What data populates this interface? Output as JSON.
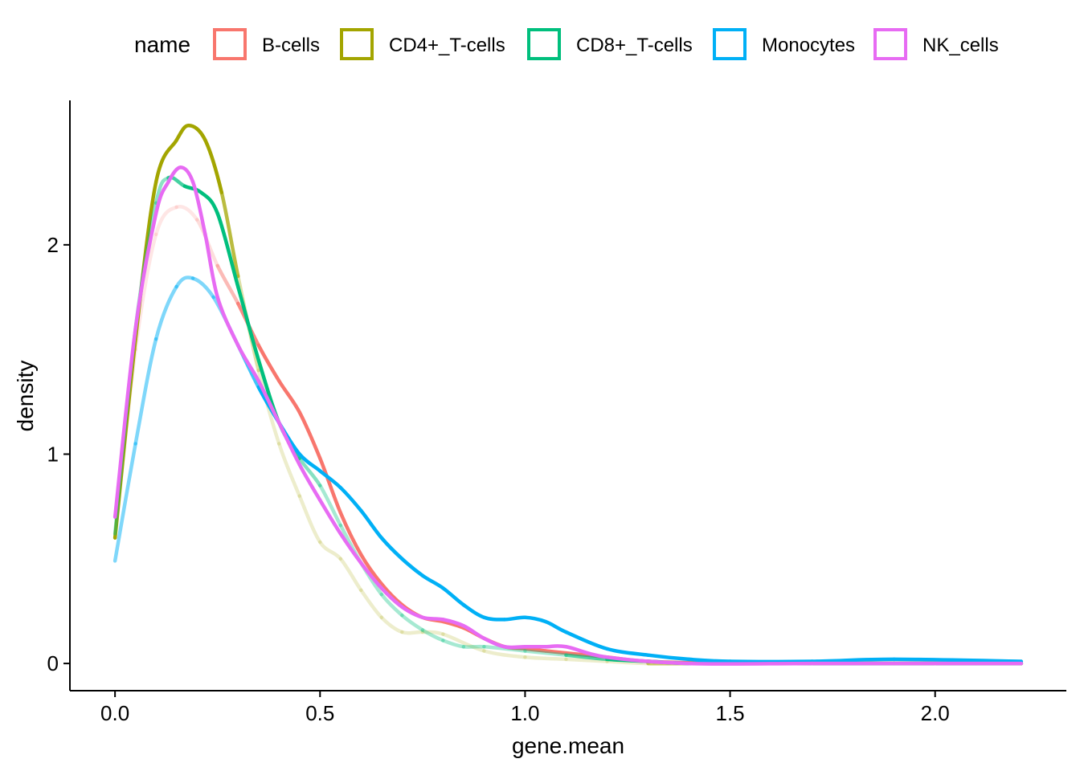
{
  "chart_data": {
    "type": "line",
    "xlabel": "gene.mean",
    "ylabel": "density",
    "xlim": [
      -0.11,
      2.32
    ],
    "ylim": [
      -0.13,
      2.69
    ],
    "x_ticks": [
      {
        "value": 0.0,
        "label": "0.0"
      },
      {
        "value": 0.5,
        "label": "0.5"
      },
      {
        "value": 1.0,
        "label": "1.0"
      },
      {
        "value": 1.5,
        "label": "1.5"
      },
      {
        "value": 2.0,
        "label": "2.0"
      }
    ],
    "y_ticks": [
      {
        "value": 0,
        "label": "0"
      },
      {
        "value": 1,
        "label": "1"
      },
      {
        "value": 2,
        "label": "2"
      }
    ],
    "grid": false,
    "legend": {
      "title": "name",
      "position": "top",
      "entries": [
        "B-cells",
        "CD4+_T-cells",
        "CD8+_T-cells",
        "Monocytes",
        "NK_cells"
      ]
    },
    "series": [
      {
        "name": "B-cells",
        "color": "#F8766D",
        "opacity": [
          0.18,
          0.18,
          0.18,
          0.18,
          0.18,
          0.3,
          0.7,
          1,
          1,
          1,
          1,
          1,
          1,
          1,
          1,
          1,
          1,
          1,
          1,
          1,
          1,
          1,
          1,
          1,
          1,
          1,
          1,
          1,
          1,
          1
        ],
        "x": [
          0.0,
          0.05,
          0.1,
          0.15,
          0.2,
          0.25,
          0.3,
          0.35,
          0.4,
          0.45,
          0.5,
          0.55,
          0.6,
          0.65,
          0.7,
          0.75,
          0.8,
          0.85,
          0.9,
          0.95,
          1.0,
          1.05,
          1.1,
          1.2,
          1.3,
          1.5,
          1.7,
          1.9,
          2.0,
          2.21
        ],
        "y": [
          0.6,
          1.5,
          2.05,
          2.18,
          2.12,
          1.9,
          1.72,
          1.52,
          1.35,
          1.2,
          0.98,
          0.72,
          0.52,
          0.38,
          0.28,
          0.22,
          0.2,
          0.17,
          0.12,
          0.08,
          0.07,
          0.06,
          0.05,
          0.03,
          0.01,
          0.0,
          0.0,
          0.0,
          0.0,
          0.0
        ]
      },
      {
        "name": "CD4+_T-cells",
        "color": "#A3A500",
        "opacity": [
          1,
          1,
          1,
          1,
          1,
          1,
          1,
          0.5,
          0.2,
          0.2,
          0.2,
          0.2,
          0.2,
          0.2,
          0.2,
          0.2,
          0.2,
          0.2,
          0.2,
          0.2,
          0.2,
          0.2,
          0.2,
          1,
          1,
          1,
          1,
          1,
          1,
          1
        ],
        "x": [
          0.0,
          0.05,
          0.1,
          0.15,
          0.18,
          0.22,
          0.26,
          0.3,
          0.35,
          0.4,
          0.45,
          0.5,
          0.55,
          0.6,
          0.65,
          0.7,
          0.75,
          0.8,
          0.9,
          1.0,
          1.1,
          1.2,
          1.3,
          1.4,
          1.5,
          1.7,
          1.9,
          2.0,
          2.1,
          2.21
        ],
        "y": [
          0.6,
          1.55,
          2.3,
          2.5,
          2.57,
          2.5,
          2.25,
          1.85,
          1.4,
          1.05,
          0.8,
          0.58,
          0.5,
          0.35,
          0.22,
          0.15,
          0.15,
          0.14,
          0.06,
          0.03,
          0.02,
          0.01,
          0.0,
          0.0,
          0.0,
          0.0,
          0.0,
          0.0,
          0.0,
          0.0
        ]
      },
      {
        "name": "CD8+_T-cells",
        "color": "#00BF7D",
        "opacity": [
          0.45,
          0.45,
          0.45,
          0.45,
          1,
          1,
          1,
          1,
          1,
          1,
          0.6,
          0.35,
          0.35,
          0.35,
          0.35,
          0.35,
          0.35,
          0.35,
          0.35,
          0.35,
          0.35,
          0.35,
          1,
          1,
          1,
          1,
          1,
          1,
          1,
          1
        ],
        "x": [
          0.0,
          0.05,
          0.1,
          0.13,
          0.17,
          0.21,
          0.25,
          0.3,
          0.35,
          0.4,
          0.45,
          0.5,
          0.55,
          0.6,
          0.65,
          0.7,
          0.75,
          0.8,
          0.85,
          0.9,
          1.0,
          1.1,
          1.2,
          1.3,
          1.4,
          1.5,
          1.7,
          1.9,
          2.1,
          2.21
        ],
        "y": [
          0.62,
          1.6,
          2.2,
          2.32,
          2.28,
          2.25,
          2.15,
          1.8,
          1.45,
          1.15,
          0.98,
          0.85,
          0.66,
          0.48,
          0.33,
          0.23,
          0.16,
          0.11,
          0.08,
          0.08,
          0.06,
          0.04,
          0.02,
          0.01,
          0.0,
          0.0,
          0.0,
          0.0,
          0.0,
          0.0
        ]
      },
      {
        "name": "Monocytes",
        "color": "#00B0F6",
        "opacity": [
          0.5,
          0.5,
          0.5,
          0.5,
          0.5,
          0.5,
          0.5,
          1,
          1,
          1,
          1,
          1,
          1,
          1,
          1,
          1,
          1,
          1,
          1,
          1,
          1,
          1,
          1,
          1,
          1,
          1,
          1,
          1,
          1,
          1
        ],
        "x": [
          0.0,
          0.05,
          0.1,
          0.15,
          0.19,
          0.24,
          0.3,
          0.35,
          0.4,
          0.45,
          0.5,
          0.55,
          0.6,
          0.65,
          0.7,
          0.75,
          0.8,
          0.85,
          0.9,
          0.95,
          1.0,
          1.05,
          1.1,
          1.2,
          1.3,
          1.4,
          1.5,
          1.7,
          1.9,
          2.21
        ],
        "y": [
          0.49,
          1.05,
          1.55,
          1.8,
          1.84,
          1.75,
          1.52,
          1.32,
          1.15,
          1.0,
          0.92,
          0.84,
          0.73,
          0.6,
          0.5,
          0.42,
          0.36,
          0.28,
          0.22,
          0.21,
          0.22,
          0.2,
          0.15,
          0.07,
          0.04,
          0.02,
          0.01,
          0.01,
          0.02,
          0.01
        ]
      },
      {
        "name": "NK_cells",
        "color": "#E76BF3",
        "opacity": [
          1,
          1,
          1,
          1,
          1,
          1,
          1,
          1,
          1,
          1,
          1,
          1,
          1,
          1,
          1,
          1,
          1,
          1,
          1,
          1,
          1,
          1,
          1,
          1,
          1,
          1,
          1,
          1,
          1,
          1
        ],
        "x": [
          0.0,
          0.05,
          0.1,
          0.13,
          0.16,
          0.19,
          0.22,
          0.25,
          0.3,
          0.35,
          0.4,
          0.45,
          0.5,
          0.55,
          0.6,
          0.65,
          0.7,
          0.75,
          0.8,
          0.85,
          0.9,
          0.95,
          1.0,
          1.05,
          1.1,
          1.2,
          1.4,
          1.7,
          2.0,
          2.21
        ],
        "y": [
          0.7,
          1.6,
          2.15,
          2.3,
          2.37,
          2.3,
          2.05,
          1.75,
          1.52,
          1.35,
          1.15,
          0.95,
          0.78,
          0.62,
          0.48,
          0.36,
          0.27,
          0.22,
          0.21,
          0.18,
          0.12,
          0.08,
          0.08,
          0.08,
          0.08,
          0.03,
          0.0,
          0.0,
          0.0,
          0.0
        ]
      }
    ]
  }
}
